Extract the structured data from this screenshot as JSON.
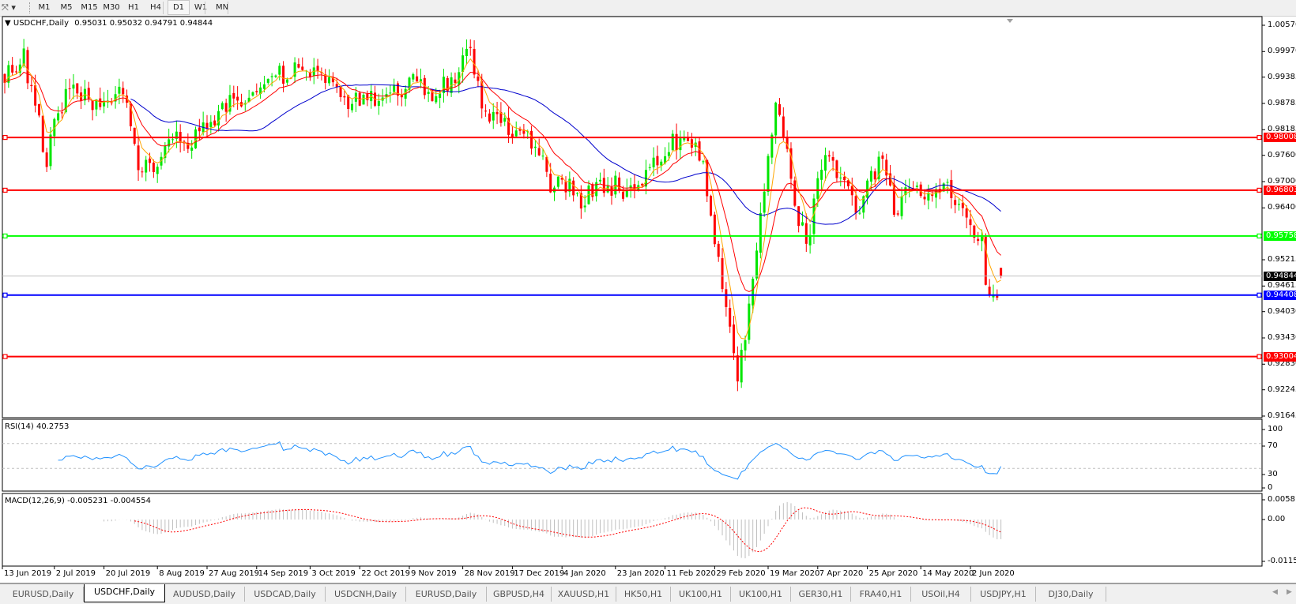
{
  "toolbar": {
    "cursor_tool_icon": "crosshair-cursor-icon",
    "timeframes": [
      "M1",
      "M5",
      "M15",
      "M30",
      "H1",
      "H4",
      "D1",
      "W1",
      "MN"
    ],
    "active_timeframe": "D1"
  },
  "chart": {
    "symbol_label": "USDCHF,Daily",
    "ohlc": "0.95031 0.95032 0.94791 0.94844",
    "current_price": "0.94844",
    "price_axis": [
      "1.00570",
      "0.99970",
      "0.99385",
      "0.98785",
      "0.98185",
      "0.97600",
      "0.97000",
      "0.96400",
      "0.95215",
      "0.94615",
      "0.94030",
      "0.93430",
      "0.92830",
      "0.92245",
      "0.91645"
    ],
    "levels": [
      {
        "price": "0.98008",
        "color": "#ff0000"
      },
      {
        "price": "0.96803",
        "color": "#ff0000"
      },
      {
        "price": "0.95758",
        "color": "#00ff00"
      },
      {
        "price": "0.94408",
        "color": "#0000ff"
      },
      {
        "price": "0.93004",
        "color": "#ff0000"
      }
    ],
    "colors": {
      "bull": "#00e600",
      "bear": "#ff0000",
      "ma_fast": "#ffa500",
      "ma_mid": "#ff0000",
      "ma_slow": "#0000cd",
      "rsi": "#1e90ff",
      "macd_hist": "#c0c0c0",
      "macd_signal": "#ff0000"
    }
  },
  "rsi": {
    "label": "RSI(14) 40.2753",
    "axis": [
      "100",
      "70",
      "30",
      "0"
    ],
    "levels": [
      70,
      30
    ]
  },
  "macd": {
    "label": "MACD(12,26,9) -0.005231 -0.004554",
    "axis": [
      "0.005818",
      "0.00",
      "-0.011514"
    ]
  },
  "date_axis": [
    "13 Jun 2019",
    "2 Jul 2019",
    "20 Jul 2019",
    "8 Aug 2019",
    "27 Aug 2019",
    "14 Sep 2019",
    "3 Oct 2019",
    "22 Oct 2019",
    "9 Nov 2019",
    "28 Nov 2019",
    "17 Dec 2019",
    "4 Jan 2020",
    "23 Jan 2020",
    "11 Feb 2020",
    "29 Feb 2020",
    "19 Mar 2020",
    "7 Apr 2020",
    "25 Apr 2020",
    "14 May 2020",
    "2 Jun 2020"
  ],
  "tabs": [
    "EURUSD,Daily",
    "USDCHF,Daily",
    "AUDUSD,Daily",
    "USDCAD,Daily",
    "USDCNH,Daily",
    "EURUSD,Daily",
    "GBPUSD,H4",
    "XAUUSD,H1",
    "HK50,H1",
    "UK100,H1",
    "UK100,H1",
    "GER30,H1",
    "FRA40,H1",
    "USOil,H4",
    "USDJPY,H1",
    "DJ30,Daily"
  ],
  "active_tab": 1,
  "chart_data": {
    "type": "candlestick",
    "symbol": "USDCHF",
    "timeframe": "Daily",
    "ylim": [
      0.91645,
      1.0057
    ],
    "last_bar": {
      "open": 0.95031,
      "high": 0.95032,
      "low": 0.94791,
      "close": 0.94844
    },
    "close_path": [
      [
        "13 Jun 2019",
        0.995
      ],
      [
        "20 Jun 2019",
        0.998
      ],
      [
        "26 Jun 2019",
        0.983
      ],
      [
        "28 Jun 2019",
        0.972
      ],
      [
        "2 Jul 2019",
        0.985
      ],
      [
        "8 Jul 2019",
        0.991
      ],
      [
        "20 Jul 2019",
        0.986
      ],
      [
        "26 Jul 2019",
        0.99
      ],
      [
        "1 Aug 2019",
        0.975
      ],
      [
        "8 Aug 2019",
        0.972
      ],
      [
        "14 Aug 2019",
        0.98
      ],
      [
        "20 Aug 2019",
        0.978
      ],
      [
        "27 Aug 2019",
        0.982
      ],
      [
        "5 Sep 2019",
        0.989
      ],
      [
        "14 Sep 2019",
        0.991
      ],
      [
        "25 Sep 2019",
        0.995
      ],
      [
        "3 Oct 2019",
        0.995
      ],
      [
        "10 Oct 2019",
        0.993
      ],
      [
        "16 Oct 2019",
        0.987
      ],
      [
        "22 Oct 2019",
        0.989
      ],
      [
        "30 Oct 2019",
        0.988
      ],
      [
        "9 Nov 2019",
        0.993
      ],
      [
        "18 Nov 2019",
        0.989
      ],
      [
        "28 Nov 2019",
        0.997
      ],
      [
        "2 Dec 2019",
        0.999
      ],
      [
        "5 Dec 2019",
        0.988
      ],
      [
        "11 Dec 2019",
        0.984
      ],
      [
        "17 Dec 2019",
        0.981
      ],
      [
        "26 Dec 2019",
        0.978
      ],
      [
        "31 Dec 2019",
        0.967
      ],
      [
        "4 Jan 2020",
        0.97
      ],
      [
        "10 Jan 2020",
        0.966
      ],
      [
        "17 Jan 2020",
        0.969
      ],
      [
        "23 Jan 2020",
        0.969
      ],
      [
        "29 Jan 2020",
        0.967
      ],
      [
        "4 Feb 2020",
        0.973
      ],
      [
        "11 Feb 2020",
        0.978
      ],
      [
        "19 Feb 2020",
        0.981
      ],
      [
        "25 Feb 2020",
        0.973
      ],
      [
        "29 Feb 2020",
        0.958
      ],
      [
        "4 Mar 2020",
        0.94
      ],
      [
        "9 Mar 2020",
        0.925
      ],
      [
        "12 Mar 2020",
        0.94
      ],
      [
        "16 Mar 2020",
        0.955
      ],
      [
        "19 Mar 2020",
        0.975
      ],
      [
        "23 Mar 2020",
        0.987
      ],
      [
        "26 Mar 2020",
        0.975
      ],
      [
        "31 Mar 2020",
        0.962
      ],
      [
        "2 Apr 2020",
        0.955
      ],
      [
        "7 Apr 2020",
        0.97
      ],
      [
        "10 Apr 2020",
        0.976
      ],
      [
        "16 Apr 2020",
        0.969
      ],
      [
        "21 Apr 2020",
        0.963
      ],
      [
        "25 Apr 2020",
        0.97
      ],
      [
        "30 Apr 2020",
        0.975
      ],
      [
        "5 May 2020",
        0.963
      ],
      [
        "11 May 2020",
        0.97
      ],
      [
        "14 May 2020",
        0.968
      ],
      [
        "19 May 2020",
        0.967
      ],
      [
        "26 May 2020",
        0.968
      ],
      [
        "2 Jun 2020",
        0.96
      ],
      [
        "5 Jun 2020",
        0.955
      ],
      [
        "9 Jun 2020",
        0.942
      ],
      [
        "11 Jun 2020",
        0.945
      ],
      [
        "12 Jun 2020",
        0.94844
      ]
    ],
    "indicators": [
      "Moving averages (fast, mid, slow)",
      "RSI(14)",
      "MACD(12,26,9)"
    ]
  }
}
